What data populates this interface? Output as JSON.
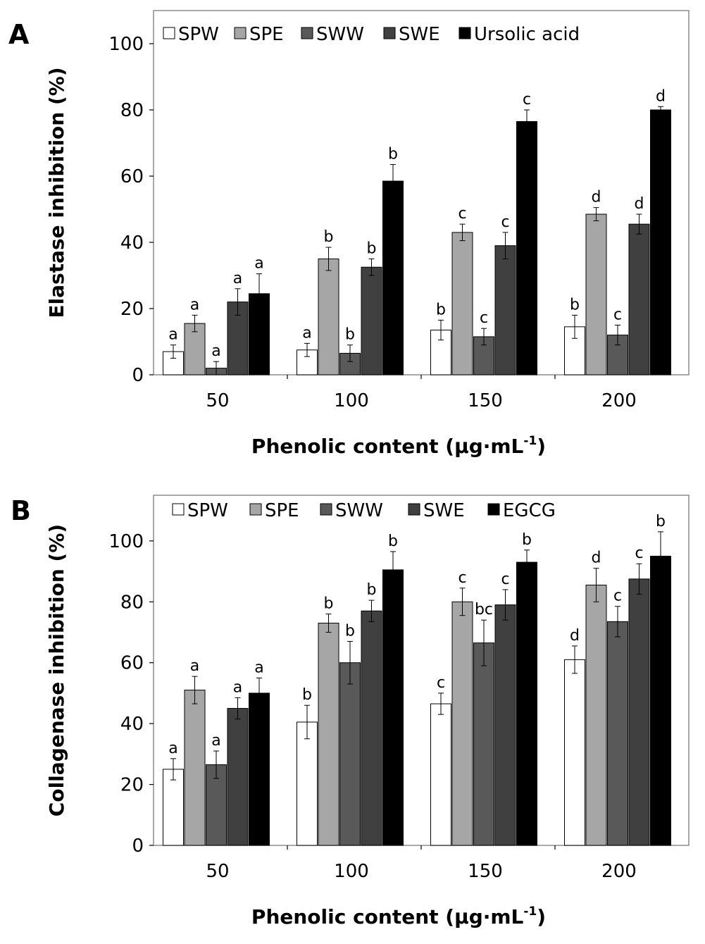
{
  "chart_data": [
    {
      "panel": "A",
      "type": "bar",
      "ylabel": "Elastase inhibition (%)",
      "xlabel_main": "Phenolic content (μg·mL",
      "xlabel_sup": "-1",
      "xlabel_close": ")",
      "categories": [
        "50",
        "100",
        "150",
        "200"
      ],
      "ylim": [
        0,
        110
      ],
      "yticks": [
        0,
        20,
        40,
        60,
        80,
        100
      ],
      "series": [
        {
          "name": "SPW",
          "color": "#ffffff",
          "values": [
            7,
            7.5,
            13.5,
            14.5
          ],
          "errors": [
            2,
            2,
            3,
            3.5
          ],
          "letters": [
            "a",
            "a",
            "b",
            "b"
          ]
        },
        {
          "name": "SPE",
          "color": "#a6a6a6",
          "values": [
            15.5,
            35,
            43,
            48.5
          ],
          "errors": [
            2.5,
            3.5,
            2.5,
            2
          ],
          "letters": [
            "a",
            "b",
            "c",
            "d"
          ]
        },
        {
          "name": "SWW",
          "color": "#595959",
          "values": [
            2,
            6.5,
            11.5,
            12
          ],
          "errors": [
            2,
            2.5,
            2.5,
            3
          ],
          "letters": [
            "a",
            "b",
            "c",
            "c"
          ]
        },
        {
          "name": "SWE",
          "color": "#404040",
          "values": [
            22,
            32.5,
            39,
            45.5
          ],
          "errors": [
            4,
            2.5,
            4,
            3
          ],
          "letters": [
            "a",
            "b",
            "c",
            "d"
          ]
        },
        {
          "name": "Ursolic acid",
          "color": "#000000",
          "values": [
            24.5,
            58.5,
            76.5,
            80
          ],
          "errors": [
            6,
            5,
            3.5,
            1
          ],
          "letters": [
            "a",
            "b",
            "c",
            "d"
          ]
        }
      ]
    },
    {
      "panel": "B",
      "type": "bar",
      "ylabel": "Collagenase inhibition (%)",
      "xlabel_main": "Phenolic content (μg·mL",
      "xlabel_sup": "-1",
      "xlabel_close": ")",
      "categories": [
        "50",
        "100",
        "150",
        "200"
      ],
      "ylim": [
        0,
        115
      ],
      "yticks": [
        0,
        20,
        40,
        60,
        80,
        100
      ],
      "series": [
        {
          "name": "SPW",
          "color": "#ffffff",
          "values": [
            25,
            40.5,
            46.5,
            61
          ],
          "errors": [
            3.5,
            5.5,
            3.5,
            4.5
          ],
          "letters": [
            "a",
            "b",
            "c",
            "d"
          ]
        },
        {
          "name": "SPE",
          "color": "#a6a6a6",
          "values": [
            51,
            73,
            80,
            85.5
          ],
          "errors": [
            4.5,
            3,
            4.5,
            5.5
          ],
          "letters": [
            "a",
            "b",
            "c",
            "d"
          ]
        },
        {
          "name": "SWW",
          "color": "#595959",
          "values": [
            26.5,
            60,
            66.5,
            73.5
          ],
          "errors": [
            4.5,
            7,
            7.5,
            5
          ],
          "letters": [
            "a",
            "b",
            "bc",
            "c"
          ]
        },
        {
          "name": "SWE",
          "color": "#404040",
          "values": [
            45,
            77,
            79,
            87.5
          ],
          "errors": [
            3.5,
            3.5,
            5,
            5
          ],
          "letters": [
            "a",
            "b",
            "c",
            "c"
          ]
        },
        {
          "name": "EGCG",
          "color": "#000000",
          "values": [
            50,
            90.5,
            93,
            95
          ],
          "errors": [
            5,
            6,
            4,
            8
          ],
          "letters": [
            "a",
            "b",
            "b",
            "b"
          ]
        }
      ]
    }
  ]
}
